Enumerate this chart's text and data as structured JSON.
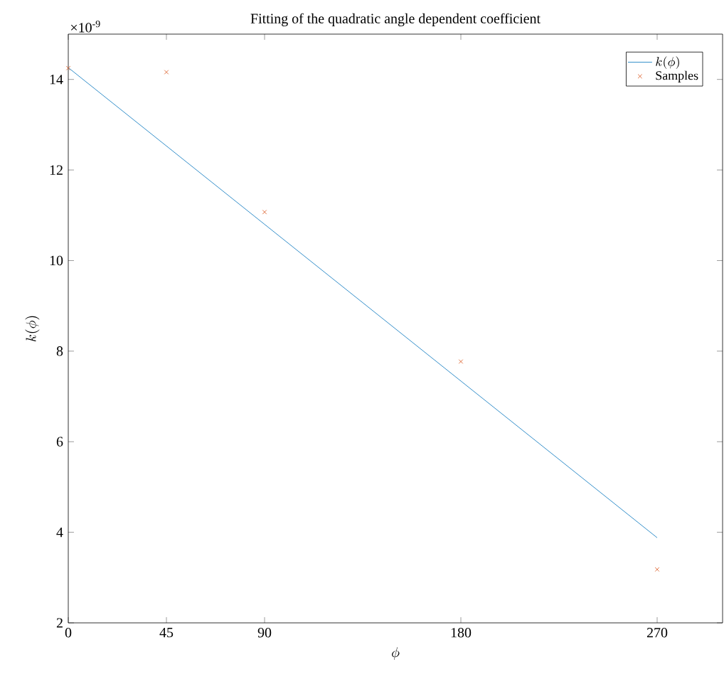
{
  "chart_data": {
    "type": "line",
    "title": "Fitting of the quadratic angle dependent coefficient",
    "xlabel": "\\phi",
    "ylabel": "k(\\phi)",
    "annotations": [
      "×10$^{-9}$"
    ],
    "xlim": [
      0,
      300
    ],
    "xticks": [
      0,
      45,
      90,
      180,
      270
    ],
    "ylim": [
      2,
      15
    ],
    "yticks": [
      2,
      4,
      6,
      8,
      10,
      12,
      14
    ],
    "legend": "top right",
    "series": [
      {
        "name": "k(\\phi)",
        "type": "line",
        "color": "#0072bd",
        "marker": "none",
        "line_style": "solid",
        "x": [
          0,
          270
        ],
        "values": [
          14.26,
          3.88
        ]
      },
      {
        "name": "Samples",
        "type": "scatter",
        "color": "#d95319",
        "marker": "cross",
        "x": [
          0,
          45,
          90,
          180,
          270
        ],
        "values": [
          14.25,
          14.16,
          11.07,
          7.77,
          3.18
        ]
      }
    ]
  }
}
